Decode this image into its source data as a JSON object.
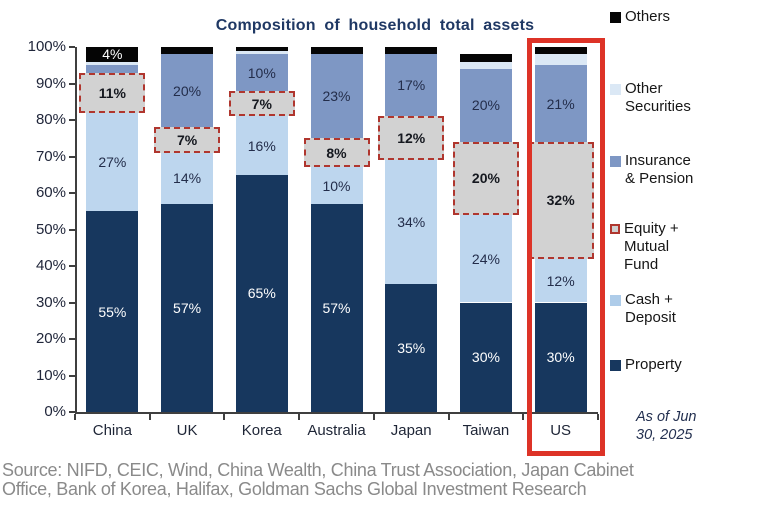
{
  "title": "Composition of household total assets",
  "as_of": [
    "As of Jun",
    "30, 2025"
  ],
  "source": [
    "Source: NIFD, CEIC, Wind, China Wealth, China Trust Association, Japan Cabinet",
    "Office, Bank of Korea, Halifax, Goldman Sachs Global Investment Research"
  ],
  "legend": [
    {
      "name": "others",
      "lines": [
        "Others"
      ],
      "color": "#050505"
    },
    {
      "name": "other-securities",
      "lines": [
        "Other",
        "Securities"
      ],
      "color": "#dbe8f5"
    },
    {
      "name": "insurance-pension",
      "lines": [
        "Insurance",
        "& Pension"
      ],
      "color": "#7e97c4"
    },
    {
      "name": "equity-mutual-fund",
      "lines": [
        "Equity +",
        "Mutual",
        "Fund"
      ],
      "color": "#d0d0d0",
      "boxed": true,
      "border": "#b0362e"
    },
    {
      "name": "cash-deposit",
      "lines": [
        "Cash +",
        "Deposit"
      ],
      "color": "#aecce9"
    },
    {
      "name": "property",
      "lines": [
        "Property"
      ],
      "color": "#17375e"
    }
  ],
  "chart_data": {
    "type": "bar",
    "stacked": true,
    "title": "Composition of household total assets",
    "categories": [
      "China",
      "UK",
      "Korea",
      "Australia",
      "Japan",
      "Taiwan",
      "US"
    ],
    "series": [
      {
        "name": "Property",
        "color": "#17375e",
        "label_color": "#ffffff",
        "values": [
          55,
          57,
          65,
          57,
          35,
          30,
          30
        ]
      },
      {
        "name": "Cash + Deposit",
        "color": "#bdd6ee",
        "label_color": "#232d4a",
        "values": [
          27,
          14,
          16,
          10,
          34,
          24,
          12
        ]
      },
      {
        "name": "Equity + Mutual Fund",
        "color": "#d2d2d2",
        "label_color": "#15181f",
        "boxed": true,
        "box_border": "#b0362e",
        "values": [
          11,
          7,
          7,
          8,
          12,
          20,
          32
        ]
      },
      {
        "name": "Insurance & Pension",
        "color": "#7e97c4",
        "label_color": "#232d4a",
        "values": [
          2,
          20,
          10,
          23,
          17,
          20,
          21
        ]
      },
      {
        "name": "Other Securities",
        "color": "#dbe8f5",
        "label_color": "#232d4a",
        "values": [
          1,
          0,
          1,
          0,
          0,
          2,
          3
        ]
      },
      {
        "name": "Others",
        "color": "#050505",
        "label_color": "#ffffff",
        "values": [
          4,
          2,
          1,
          2,
          2,
          2,
          2
        ]
      }
    ],
    "yticks": [
      "0%",
      "10%",
      "20%",
      "30%",
      "40%",
      "50%",
      "60%",
      "70%",
      "80%",
      "90%",
      "100%"
    ],
    "ylim": [
      0,
      100
    ],
    "grid": false,
    "legend_position": "right",
    "highlight_category": "US",
    "highlight_color": "#dd3327",
    "label_format": "percent"
  }
}
